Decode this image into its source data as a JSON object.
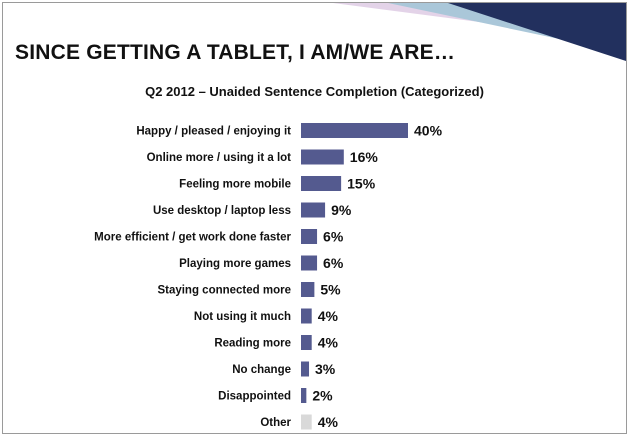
{
  "slide": {
    "title": "SINCE GETTING A TABLET, I AM/WE ARE…",
    "subtitle": "Q2 2012 – Unaided Sentence Completion (Categorized)"
  },
  "colors": {
    "bar": "#545a8f",
    "other_bar": "#d9d9d9",
    "banner_dark": "#22305e",
    "banner_mid": "#aac7d9",
    "banner_light": "#e3d3e8"
  },
  "chart_data": {
    "type": "bar",
    "orientation": "horizontal",
    "title": "SINCE GETTING A TABLET, I AM/WE ARE…",
    "subtitle": "Q2 2012 – Unaided Sentence Completion (Categorized)",
    "categories": [
      "Happy / pleased / enjoying it",
      "Online more / using it a lot",
      "Feeling more mobile",
      "Use desktop / laptop less",
      "More efficient / get work done faster",
      "Playing more games",
      "Staying connected more",
      "Not using it much",
      "Reading more",
      "No change",
      "Disappointed",
      "Other"
    ],
    "values": [
      40,
      16,
      15,
      9,
      6,
      6,
      5,
      4,
      4,
      3,
      2,
      4
    ],
    "value_labels": [
      "40%",
      "16%",
      "15%",
      "9%",
      "6%",
      "6%",
      "5%",
      "4%",
      "4%",
      "3%",
      "2%",
      "4%"
    ],
    "unit": "%",
    "grid": false,
    "legend": "none"
  }
}
